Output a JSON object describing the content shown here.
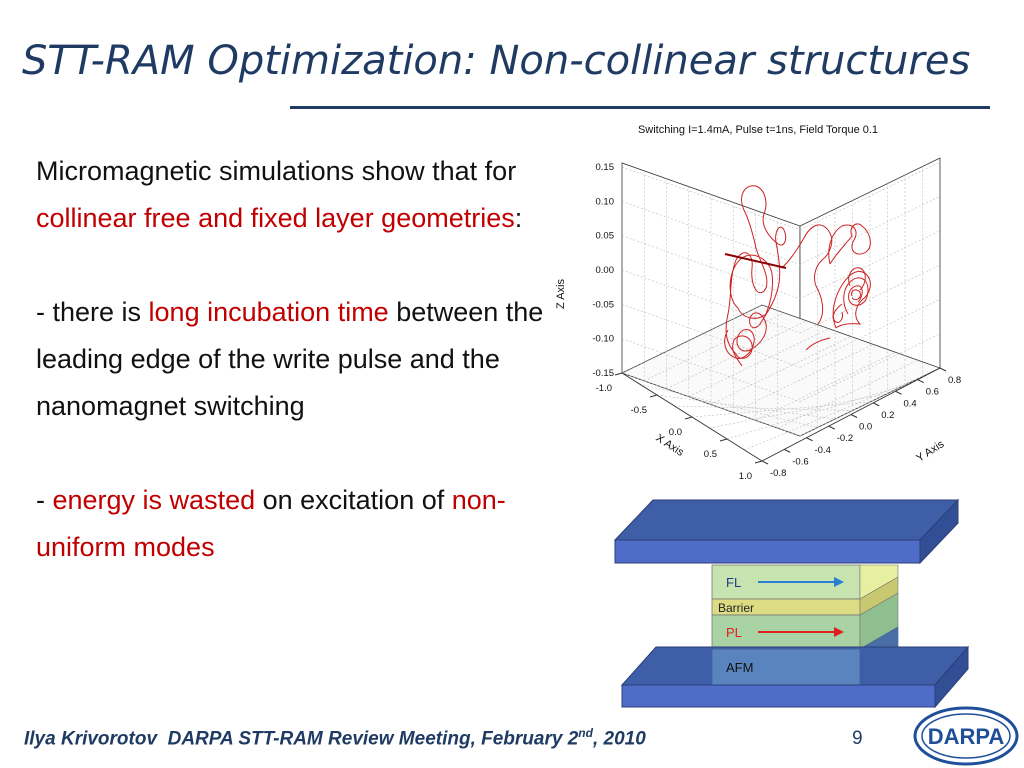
{
  "slide": {
    "title": "STT-RAM Optimization: Non-collinear structures",
    "para1": {
      "a": "Micromagnetic simulations show that for ",
      "b": "collinear free and fixed layer geometries",
      "c": ":"
    },
    "para2": {
      "a": "- there is ",
      "b": "long incubation time",
      "c": " between the leading edge of the write pulse and the nanomagnet switching"
    },
    "para3": {
      "a": "- ",
      "b": "energy is wasted",
      "c": " on excitation of ",
      "d": "non-uniform modes"
    },
    "footer": {
      "author": "Ilya Krivorotov",
      "event_pre": "DARPA STT-RAM Review Meeting, February 2",
      "sup": "nd",
      "event_post": ", 2010"
    },
    "page_number": "9",
    "logo_text": "DARPA"
  },
  "chart_data": {
    "type": "line",
    "projection": "3d",
    "title": "Switching I=1.4mA, Pulse t=1ns, Field Torque 0.1",
    "xlabel": "X Axis",
    "ylabel": "Y Axis",
    "zlabel": "Z Axis",
    "xlim": [
      -1.0,
      1.0
    ],
    "ylim": [
      -0.8,
      0.8
    ],
    "zlim": [
      -0.15,
      0.15
    ],
    "x_ticks": [
      "-1.0",
      "-0.5",
      "0.0",
      "0.5",
      "1.0"
    ],
    "y_ticks": [
      "-0.8",
      "-0.6",
      "-0.4",
      "-0.2",
      "0.0",
      "0.2",
      "0.4",
      "0.6",
      "0.8"
    ],
    "z_ticks": [
      "0.15",
      "0.10",
      "0.05",
      "0.00",
      "-0.05",
      "-0.10",
      "-0.15"
    ],
    "grid": true,
    "series": [
      {
        "color": "#cc2222",
        "note": "magnetization trajectory (values not labelled)"
      },
      {
        "color": "#8b0000",
        "note": "initial direction segment"
      }
    ]
  },
  "diagram": {
    "layers": [
      {
        "label": "FL",
        "arrow_color": "#2a7fd0"
      },
      {
        "label": "Barrier"
      },
      {
        "label": "PL",
        "arrow_color": "#e02020"
      },
      {
        "label": "AFM"
      }
    ],
    "colors": {
      "electrode": "#4f6cc8",
      "fl": "#c7e4b0",
      "barrier": "#dcdc84",
      "pl": "#a9d3a4",
      "afm": "#5a84bd"
    }
  }
}
